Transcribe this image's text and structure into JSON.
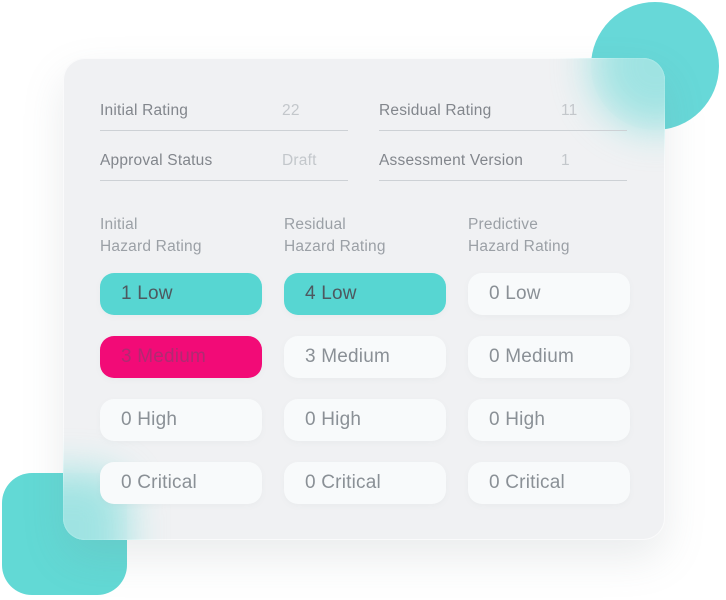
{
  "colors": {
    "teal": "#57d6d2",
    "pink": "#f20b77",
    "card_bg": "#eff1f3",
    "text_gray": "#82868c",
    "value_gray": "#c3c7cb"
  },
  "card": {
    "fields": [
      {
        "label": "Initial Rating",
        "value": "22"
      },
      {
        "label": "Residual Rating",
        "value": "11"
      },
      {
        "label": "Approval Status",
        "value": "Draft"
      },
      {
        "label": "Assessment Version",
        "value": "1"
      }
    ],
    "columns": [
      {
        "title": [
          "Initial",
          "Hazard Rating"
        ],
        "ratings": [
          {
            "label": "1 Low",
            "variant": "teal"
          },
          {
            "label": "3 Medium",
            "variant": "pink"
          },
          {
            "label": "0 High",
            "variant": "plain"
          },
          {
            "label": "0 Critical",
            "variant": "plain"
          }
        ]
      },
      {
        "title": [
          "Residual",
          "Hazard Rating"
        ],
        "ratings": [
          {
            "label": "4 Low",
            "variant": "teal"
          },
          {
            "label": "3 Medium",
            "variant": "plain"
          },
          {
            "label": "0 High",
            "variant": "plain"
          },
          {
            "label": "0 Critical",
            "variant": "plain"
          }
        ]
      },
      {
        "title": [
          "Predictive",
          "Hazard Rating"
        ],
        "ratings": [
          {
            "label": "0 Low",
            "variant": "plain"
          },
          {
            "label": "0 Medium",
            "variant": "plain"
          },
          {
            "label": "0 High",
            "variant": "plain"
          },
          {
            "label": "0 Critical",
            "variant": "plain"
          }
        ]
      }
    ]
  }
}
